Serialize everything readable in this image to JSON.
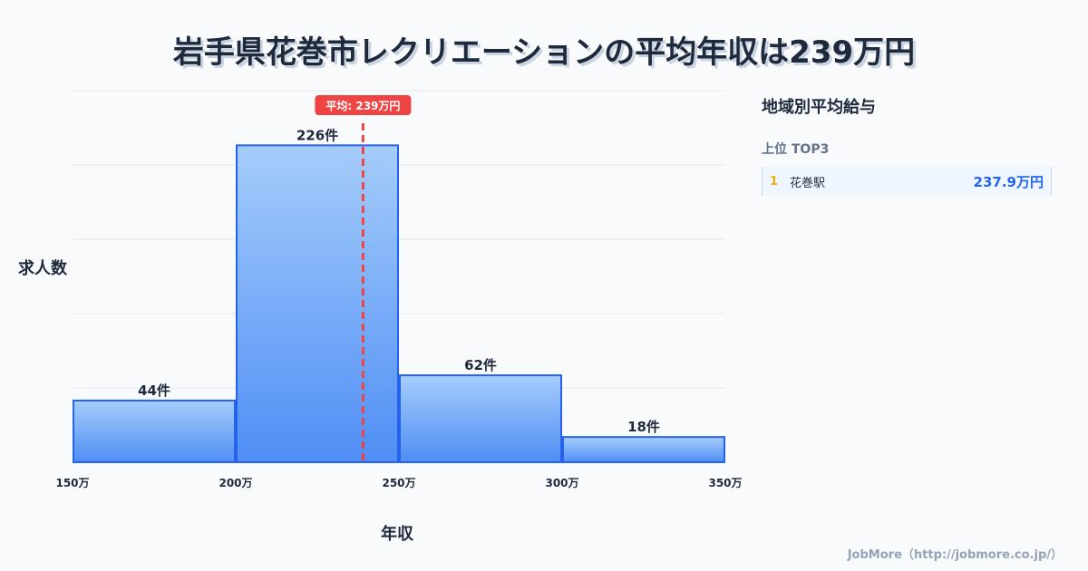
{
  "title": "岩手県花巻市レクリエーションの平均年収は239万円",
  "chart_data": {
    "type": "bar",
    "title": "岩手県花巻市レクリエーションの平均年収は239万円",
    "xlabel": "年収",
    "ylabel": "求人数",
    "bins": [
      [
        150,
        200
      ],
      [
        200,
        250
      ],
      [
        250,
        300
      ],
      [
        300,
        350
      ]
    ],
    "values": [
      44,
      226,
      62,
      18
    ],
    "data_labels": [
      "44件",
      "226件",
      "62件",
      "18件"
    ],
    "tick_labels": [
      "150万",
      "200万",
      "250万",
      "300万",
      "350万"
    ],
    "xlim": [
      150,
      350
    ],
    "ylim": [
      0,
      265
    ],
    "mean": 239,
    "mean_label": "平均: 239万円",
    "grid": true
  },
  "side": {
    "title": "地域別平均給与",
    "subtitle": "上位 TOP3",
    "items": [
      {
        "rank": "1",
        "name": "花巻駅",
        "value": "237.9万円"
      }
    ]
  },
  "credit": "JobMore（http://jobmore.co.jp/）",
  "colors": {
    "bar_top": "#a5cdfb",
    "bar_bottom": "#4f8ef5",
    "bar_stroke": "#2563eb",
    "mean": "#ef4444"
  }
}
